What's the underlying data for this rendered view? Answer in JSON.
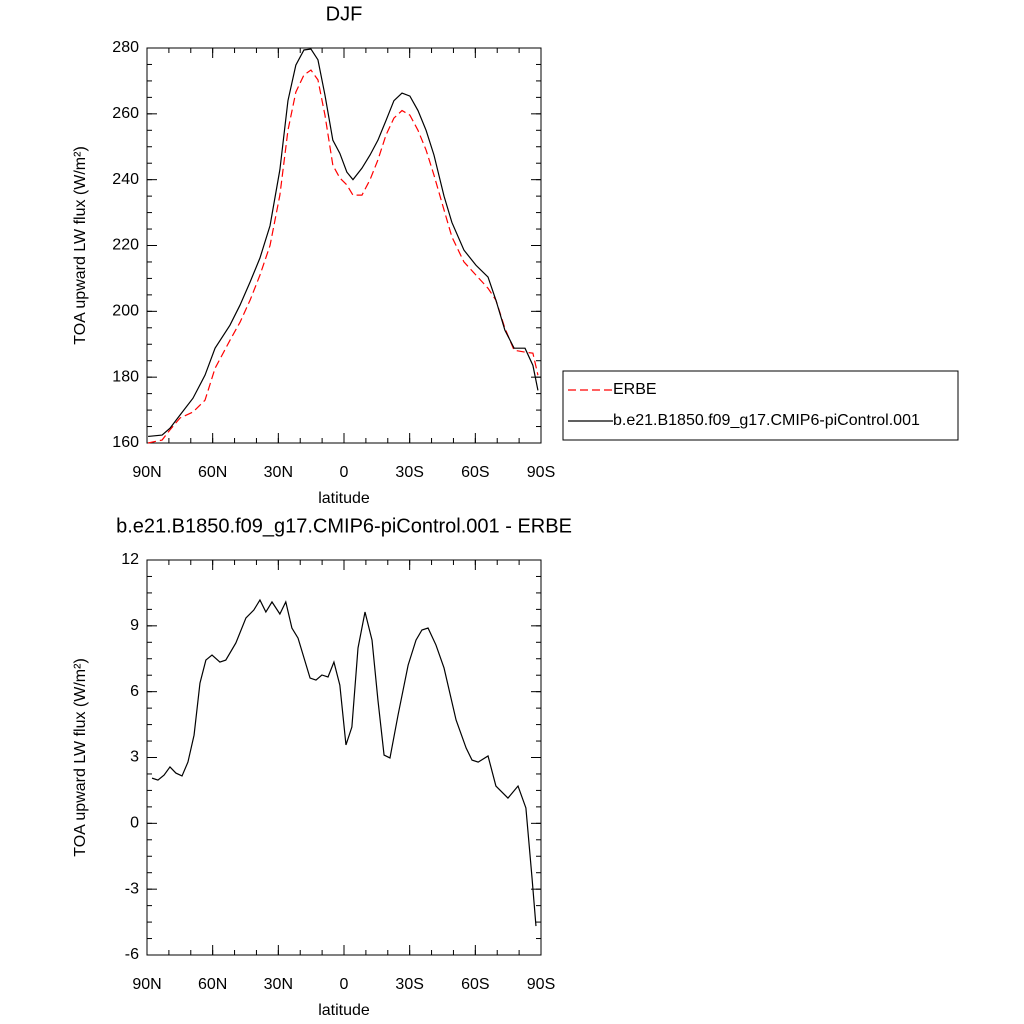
{
  "chart_data": [
    {
      "type": "line",
      "title": "DJF",
      "xlabel": "latitude",
      "ylabel": "TOA upward LW flux (W/m²)",
      "xlim": [
        90,
        -90
      ],
      "ylim": [
        160,
        280
      ],
      "xticks": [
        {
          "value": 90,
          "label": "90N"
        },
        {
          "value": 60,
          "label": "60N"
        },
        {
          "value": 30,
          "label": "30N"
        },
        0,
        {
          "value": -30,
          "label": "30S"
        },
        {
          "value": -60,
          "label": "60S"
        },
        {
          "value": -90,
          "label": "90S"
        }
      ],
      "yticks": [
        160,
        180,
        200,
        220,
        240,
        260,
        280
      ],
      "legend": "right",
      "x": [
        89.5,
        83.1,
        79.5,
        74.9,
        69,
        63.5,
        58.9,
        52.1,
        47.5,
        42.9,
        38.4,
        33.8,
        29.3,
        25.6,
        22,
        18.3,
        15.1,
        11.9,
        8.7,
        5.1,
        1.9,
        -1.3,
        -4.1,
        -8.2,
        -11.9,
        -15.5,
        -19.2,
        -22.8,
        -26.5,
        -30.1,
        -33.8,
        -37.5,
        -41.1,
        -45.7,
        -49.3,
        -54.8,
        -60.3,
        -65.8,
        -69.4,
        -73.5,
        -77.7,
        -82.7,
        -86.3,
        -88.6
      ],
      "series": [
        {
          "name": "ERBE",
          "color": "#ff0000",
          "dash": true,
          "values": [
            160,
            160.9,
            164,
            167.6,
            169.4,
            173,
            182.7,
            191.2,
            196.7,
            203.4,
            211,
            220,
            235.3,
            255,
            266.6,
            271.8,
            273.3,
            270.3,
            259.6,
            244.4,
            240.5,
            238.4,
            235.3,
            235.3,
            240,
            246,
            253.6,
            258.7,
            261,
            259.6,
            255,
            249,
            241.4,
            230.8,
            222.6,
            215,
            211,
            207,
            203.4,
            194.9,
            188.2,
            187.6,
            187.3,
            180.6
          ]
        },
        {
          "name": "b.e21.B1850.f09_g17.CMIP6-piControl.001",
          "color": "#000000",
          "dash": false,
          "values": [
            162,
            162.4,
            164.5,
            168.5,
            173.6,
            180.6,
            188.8,
            195.8,
            201.9,
            208.9,
            216.2,
            226,
            243,
            264,
            274.8,
            279.4,
            279.7,
            276.4,
            265.7,
            252,
            248,
            242.3,
            240,
            243.5,
            247.5,
            252,
            258,
            264,
            266.3,
            265.4,
            261,
            255,
            247.5,
            235,
            227,
            218.6,
            214,
            210.4,
            203.4,
            194.3,
            188.8,
            188.8,
            183.6,
            176
          ]
        }
      ]
    },
    {
      "type": "line",
      "title": "b.e21.B1850.f09_g17.CMIP6-piControl.001 - ERBE",
      "xlabel": "latitude",
      "ylabel": "TOA upward LW flux (W/m²)",
      "xlim": [
        90,
        -90
      ],
      "ylim": [
        -6,
        12
      ],
      "xticks": [
        {
          "value": 90,
          "label": "90N"
        },
        {
          "value": 60,
          "label": "60N"
        },
        {
          "value": 30,
          "label": "30N"
        },
        0,
        {
          "value": -30,
          "label": "30S"
        },
        {
          "value": -60,
          "label": "60S"
        },
        {
          "value": -90,
          "label": "90S"
        }
      ],
      "yticks": [
        -6,
        -3,
        0,
        3,
        6,
        9,
        12
      ],
      "x": [
        87.7,
        85,
        82.2,
        79.5,
        76.8,
        74,
        71.3,
        68.5,
        65.8,
        63.1,
        60.3,
        56.7,
        54,
        49.4,
        44.8,
        41.2,
        38.4,
        35.7,
        32.9,
        29.3,
        26.6,
        23.8,
        21,
        15.5,
        12.8,
        10.1,
        7.3,
        4.6,
        1.9,
        -0.9,
        -3.6,
        -6.4,
        -9.6,
        -12.8,
        -15.5,
        -18.3,
        -21,
        -24.7,
        -29.3,
        -32.9,
        -35.6,
        -38.4,
        -42,
        -45.7,
        -51.2,
        -55.8,
        -58.5,
        -61.3,
        -65.8,
        -69.4,
        -74.9,
        -79.5,
        -83.1,
        -85.9,
        -87.7
      ],
      "series": [
        {
          "color": "#000000",
          "dash": false,
          "values": [
            2.06,
            1.97,
            2.2,
            2.57,
            2.29,
            2.16,
            2.79,
            4.02,
            6.39,
            7.44,
            7.67,
            7.35,
            7.44,
            8.22,
            9.36,
            9.72,
            10.18,
            9.63,
            10.09,
            9.54,
            10.09,
            8.9,
            8.44,
            6.62,
            6.53,
            6.76,
            6.67,
            7.35,
            6.3,
            3.57,
            4.39,
            7.99,
            9.63,
            8.35,
            5.62,
            3.11,
            2.98,
            4.94,
            7.21,
            8.35,
            8.81,
            8.9,
            8.13,
            7.08,
            4.71,
            3.43,
            2.88,
            2.79,
            3.07,
            1.7,
            1.15,
            1.7,
            0.7,
            -2.49,
            -4.68
          ]
        }
      ]
    }
  ]
}
